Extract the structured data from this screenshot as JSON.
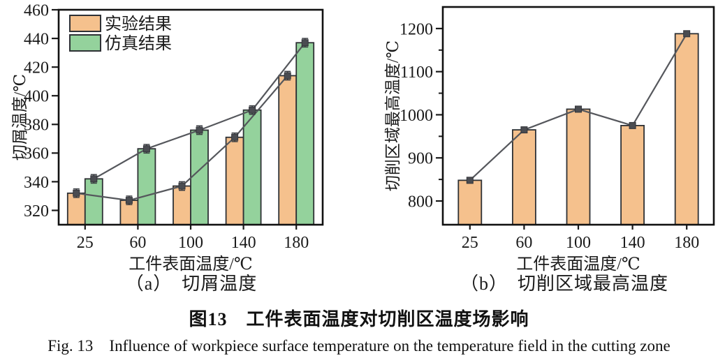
{
  "figure": {
    "caption_zh": "图13　工件表面温度对切削区温度场影响",
    "caption_en": "Fig. 13　Influence of workpiece surface temperature on the temperature field in the cutting zone",
    "background_color": "#ffffff",
    "text_color": "#1a1a1a"
  },
  "chart_data": [
    {
      "id": "a",
      "type": "bar",
      "subtitle": "（a）　切屑温度",
      "xlabel": "工件表面温度/℃",
      "ylabel": "切屑温度/℃",
      "categories": [
        "25",
        "60",
        "100",
        "140",
        "180"
      ],
      "series": [
        {
          "name": "实验结果",
          "color": "#F5C18D",
          "values": [
            332,
            327,
            337,
            371,
            414
          ]
        },
        {
          "name": "仿真结果",
          "color": "#94D29C",
          "values": [
            342,
            363,
            376,
            390,
            437
          ]
        }
      ],
      "ylim": [
        310,
        460
      ],
      "yticks": [
        320,
        340,
        360,
        380,
        400,
        420,
        440,
        460
      ],
      "minor_yticks": [],
      "grid": false,
      "legend_position": "top-left",
      "line_color": "#55575C",
      "marker": "square",
      "marker_color": "#4A4C51",
      "bar_outline_color": "#2E3135",
      "error_bar": 3
    },
    {
      "id": "b",
      "type": "bar",
      "subtitle": "（b）　切削区域最高温度",
      "xlabel": "工件表面温度/℃",
      "ylabel": "切削区域最高温度/℃",
      "categories": [
        "25",
        "60",
        "100",
        "140",
        "180"
      ],
      "series": [
        {
          "name": "实验结果",
          "color": "#F5C18D",
          "values": [
            848,
            965,
            1013,
            975,
            1188
          ]
        }
      ],
      "ylim": [
        745,
        1250
      ],
      "yticks": [
        800,
        900,
        1000,
        1100,
        1200
      ],
      "minor_yticks": [
        850,
        950,
        1050,
        1150
      ],
      "grid": false,
      "legend_position": "none",
      "line_color": "#55575C",
      "marker": "square",
      "marker_color": "#4A4C51",
      "bar_outline_color": "#2E3135",
      "error_bar": 6
    }
  ]
}
